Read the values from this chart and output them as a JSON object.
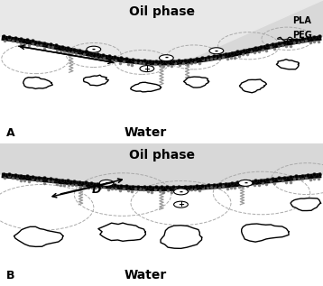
{
  "fig_width": 3.58,
  "fig_height": 3.17,
  "dpi": 100,
  "bg_color": "#d8d8d8",
  "panel_bg_oil": "#e8e8e8",
  "panel_bg_water": "#ffffff",
  "title_A": "Oil phase",
  "title_B": "Oil phase",
  "water_A": "Water",
  "water_B": "Water",
  "label_A": "A",
  "label_B": "B",
  "label_PLA": "PLA",
  "label_PEG": "PEG",
  "label_D": "D",
  "text_color": "#000000",
  "interface_color": "#000000",
  "bead_color": "#111111",
  "chain_color": "#999999",
  "dashed_circle_color": "#aaaaaa",
  "charge_circle_color": "#000000",
  "blob_edge_color": "#000000",
  "blob_fill_color": "#ffffff",
  "arrow_color": "#000000"
}
